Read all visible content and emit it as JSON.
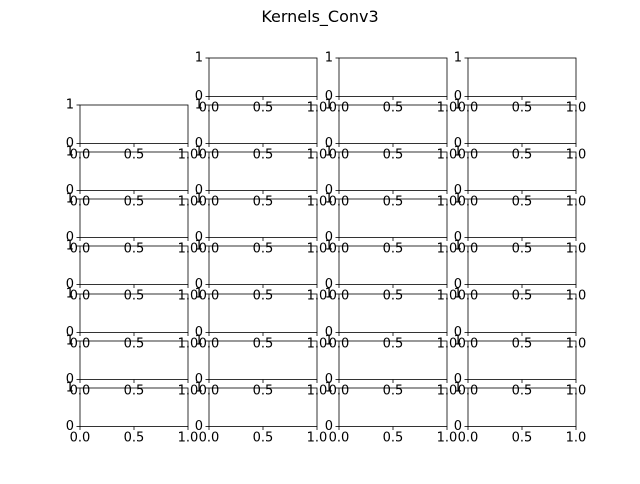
{
  "chart_data": {
    "type": "subplot_grid",
    "title": "Kernels_Conv3",
    "rows": 8,
    "cols": 4,
    "empty_cells": [
      [
        0,
        0
      ]
    ],
    "panel": {
      "xlim": [
        0,
        1
      ],
      "ylim": [
        0,
        1
      ],
      "xticks": [
        "0.0",
        "0.5",
        "1.0"
      ],
      "yticks": [
        "0",
        "1"
      ],
      "grid": false,
      "series": []
    }
  }
}
